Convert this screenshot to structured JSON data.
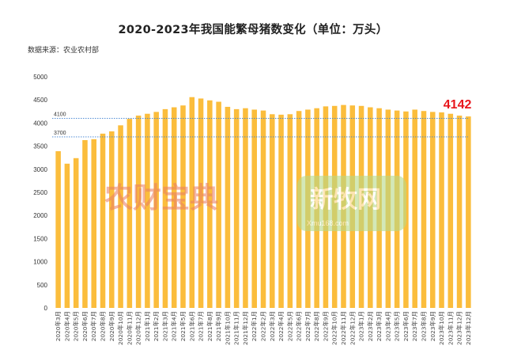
{
  "title": "2020-2023年我国能繁母猪数变化（单位：万头）",
  "source": "数据来源：农业农村部",
  "watermarks": {
    "left": "农财宝典",
    "right_main": "新牧网",
    "right_sub": "Xmu168.com"
  },
  "colors": {
    "bar": "#fbbd3c",
    "refline": "#3b7fd0",
    "callout": "#e8161c",
    "axis_text": "#333333"
  },
  "chart_data": {
    "type": "bar",
    "title": "2020-2023年我国能繁母猪数变化（单位：万头）",
    "ylim": [
      0,
      5000
    ],
    "yticks": [
      0,
      500,
      1000,
      1500,
      2000,
      2500,
      3000,
      3500,
      4000,
      4500,
      5000
    ],
    "grid": false,
    "reference_lines": [
      {
        "label": "4100",
        "value": 4100
      },
      {
        "label": "3700",
        "value": 3700
      }
    ],
    "annotation": {
      "label": "4142",
      "category_index": 46
    },
    "categories": [
      "2020年3月",
      "2020年4月",
      "2020年5月",
      "2020年6月",
      "2020年7月",
      "2020年8月",
      "2020年9月",
      "2020年10月",
      "2020年11月",
      "2020年12月",
      "2021年1月",
      "2021年2月",
      "2021年3月",
      "2021年4月",
      "2021年5月",
      "2021年6月",
      "2021年7月",
      "2021年8月",
      "2021年9月",
      "2021年10月",
      "2021年11月",
      "2021年12月",
      "2022年1月",
      "2022年2月",
      "2022年3月",
      "2022年4月",
      "2022年5月",
      "2022年6月",
      "2022年7月",
      "2022年8月",
      "2022年9月",
      "2022年10月",
      "2022年11月",
      "2022年12月",
      "2023年1月",
      "2023年2月",
      "2023年3月",
      "2023年4月",
      "2023年5月",
      "2023年6月",
      "2023年7月",
      "2023年8月",
      "2023年9月",
      "2023年10月",
      "2023年11月",
      "2023年12月",
      "2023年12月"
    ],
    "values": [
      3390,
      3120,
      3240,
      3630,
      3650,
      3770,
      3820,
      3950,
      4090,
      4160,
      4200,
      4240,
      4300,
      4340,
      4380,
      4560,
      4530,
      4490,
      4460,
      4350,
      4300,
      4320,
      4290,
      4270,
      4190,
      4180,
      4190,
      4260,
      4290,
      4320,
      4360,
      4370,
      4390,
      4380,
      4370,
      4340,
      4320,
      4290,
      4270,
      4250,
      4290,
      4260,
      4240,
      4230,
      4200,
      4160,
      4142
    ]
  }
}
